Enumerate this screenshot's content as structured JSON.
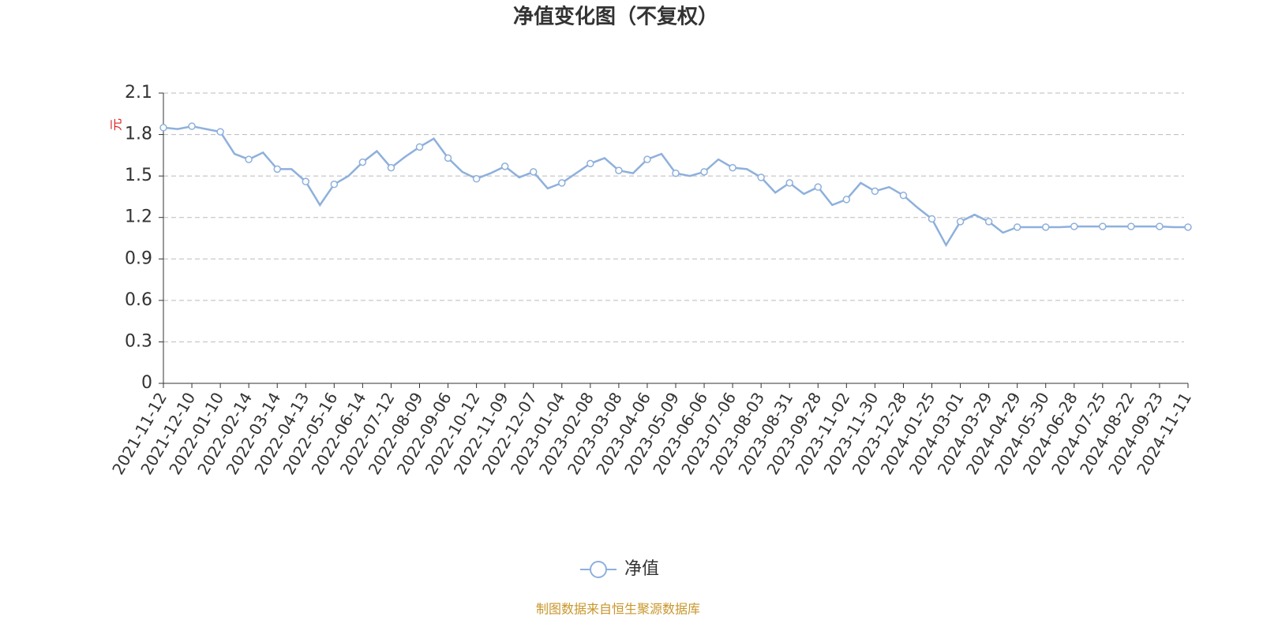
{
  "chart_data": {
    "type": "line",
    "title": "净值变化图（不复权）",
    "y_label": "元",
    "source": "制图数据来自恒生聚源数据库",
    "categories": [
      "2021-11-12",
      null,
      "2021-12-10",
      null,
      "2022-01-10",
      null,
      "2022-02-14",
      null,
      "2022-03-14",
      null,
      "2022-04-13",
      null,
      "2022-05-16",
      null,
      "2022-06-14",
      null,
      "2022-07-12",
      null,
      "2022-08-09",
      null,
      "2022-09-06",
      null,
      "2022-10-12",
      null,
      "2022-11-09",
      null,
      "2022-12-07",
      null,
      "2023-01-04",
      null,
      "2023-02-08",
      null,
      "2023-03-08",
      null,
      "2023-04-06",
      null,
      "2023-05-09",
      null,
      "2023-06-06",
      null,
      "2023-07-06",
      null,
      "2023-08-03",
      null,
      "2023-08-31",
      null,
      "2023-09-28",
      null,
      "2023-11-02",
      null,
      "2023-11-30",
      null,
      "2023-12-28",
      null,
      "2024-01-25",
      null,
      "2024-03-01",
      null,
      "2024-03-29",
      null,
      "2024-04-29",
      null,
      "2024-05-30",
      null,
      "2024-06-28",
      null,
      "2024-07-25",
      null,
      "2024-08-22",
      null,
      "2024-09-23",
      null,
      "2024-11-11"
    ],
    "series": [
      {
        "name": "净值",
        "color": "#8eb0dc",
        "values": [
          1.85,
          1.84,
          1.86,
          1.84,
          1.82,
          1.66,
          1.62,
          1.67,
          1.55,
          1.55,
          1.46,
          1.29,
          1.44,
          1.5,
          1.6,
          1.68,
          1.56,
          1.64,
          1.71,
          1.77,
          1.63,
          1.53,
          1.48,
          1.52,
          1.57,
          1.49,
          1.53,
          1.41,
          1.45,
          1.52,
          1.59,
          1.63,
          1.54,
          1.52,
          1.62,
          1.66,
          1.52,
          1.5,
          1.53,
          1.62,
          1.56,
          1.55,
          1.49,
          1.38,
          1.45,
          1.37,
          1.42,
          1.29,
          1.33,
          1.45,
          1.39,
          1.42,
          1.36,
          1.27,
          1.19,
          1.0,
          1.17,
          1.22,
          1.17,
          1.09,
          1.13,
          1.13,
          1.13,
          1.13,
          1.135,
          1.135,
          1.135,
          1.135,
          1.135,
          1.135,
          1.135,
          1.13,
          1.13
        ]
      }
    ],
    "ylim": [
      0,
      2.1
    ],
    "yticks": [
      0,
      {
        "value": 0.3,
        "label": "0.3"
      },
      {
        "value": 0.6,
        "label": "0.6"
      },
      {
        "value": 0.9,
        "label": "0.9"
      },
      {
        "value": 1.2,
        "label": "1.2"
      },
      {
        "value": 1.5,
        "label": "1.5"
      },
      {
        "value": 1.8,
        "label": "1.8"
      },
      {
        "value": 2.1,
        "label": "2.1"
      }
    ],
    "grid": true,
    "legend": "bottom"
  }
}
